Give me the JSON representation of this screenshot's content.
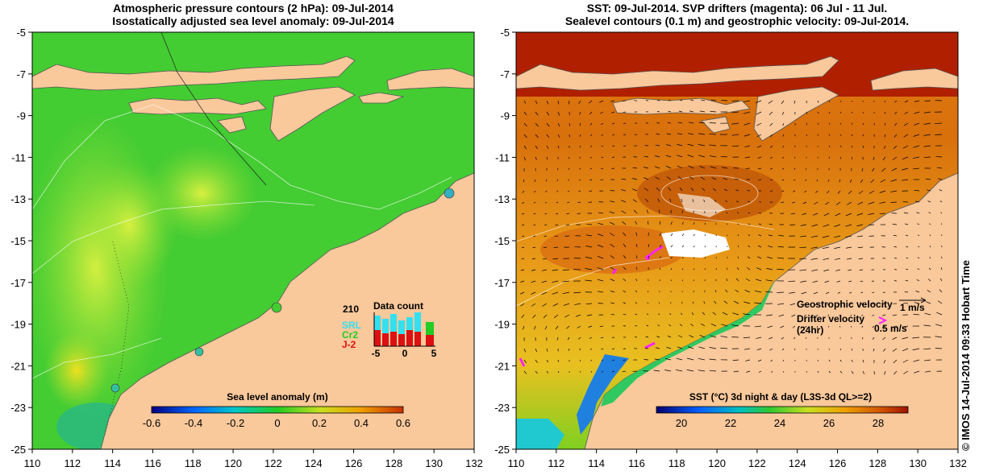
{
  "left_map": {
    "title_line1": "Atmospheric pressure contours (2 hPa): 09-Jul-2014",
    "title_line2": "Isostatically adjusted sea level anomaly: 09-Jul-2014",
    "colorbar_label": "Sea level anomaly (m)",
    "colorbar_ticks": [
      "-0.6",
      "-0.4",
      "-0.2",
      "0",
      "0.2",
      "0.4",
      "0.6"
    ],
    "inset": {
      "count_label": "210",
      "title": "Data count",
      "legend": [
        {
          "label": "SRL",
          "color": "#33e0f0"
        },
        {
          "label": "Cr2",
          "color": "#22cc22"
        },
        {
          "label": "J-2",
          "color": "#dd1111"
        }
      ],
      "x_ticks": [
        "-5",
        "0",
        "5"
      ]
    }
  },
  "right_map": {
    "title_line1": "SST: 09-Jul-2014. SVP drifters (magenta): 06 Jul - 11 Jul.",
    "title_line2": "Sealevel contours (0.1 m) and geostrophic velocity: 09-Jul-2014.",
    "colorbar_label": "SST (°C) 3d night & day (L3S-3d QL>=2)",
    "colorbar_ticks": [
      "20",
      "22",
      "24",
      "26",
      "28"
    ],
    "geostrophic_label": "Geostrophic velocity",
    "geostrophic_scale": "1 m/s",
    "drifter_label_1": "Drifter velocity",
    "drifter_label_2": "(24hr)",
    "drifter_scale": "0.5 m/s"
  },
  "axes": {
    "x_ticks": [
      "110",
      "112",
      "114",
      "116",
      "118",
      "120",
      "122",
      "124",
      "126",
      "128",
      "130",
      "132"
    ],
    "y_ticks": [
      "-5",
      "-7",
      "-9",
      "-11",
      "-13",
      "-15",
      "-17",
      "-19",
      "-21",
      "-23",
      "-25"
    ]
  },
  "credit": "© IMOS 14-Jul-2014 09:33 Hobart Time"
}
